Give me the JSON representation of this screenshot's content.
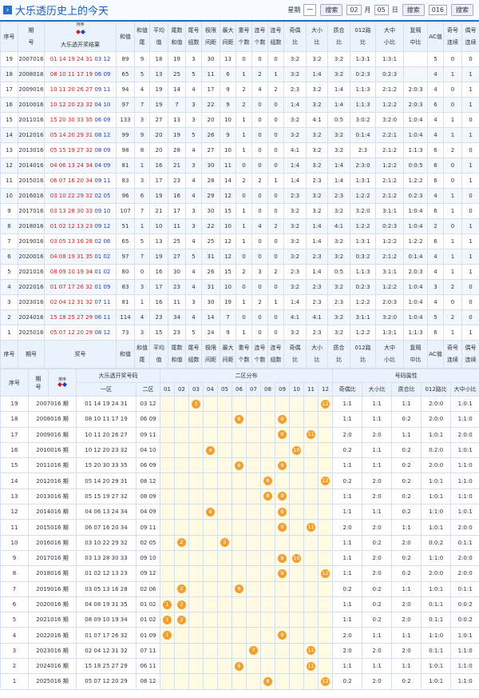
{
  "header": {
    "title": "大乐透历史上的今天",
    "week_label": "星期",
    "week_select": "一",
    "search1": "搜索",
    "month_select": "02",
    "month_label": "月",
    "day_select": "05",
    "day_label": "日",
    "search2": "搜索",
    "year_input": "016",
    "search3": "搜索"
  },
  "upper_table": {
    "sort_label": "排序",
    "columns": [
      [
        "序号"
      ],
      [
        "期",
        "号"
      ],
      [
        "大乐透开奖结果"
      ],
      [
        "和值"
      ],
      [
        "和值",
        "尾"
      ],
      [
        "平均",
        "值"
      ],
      [
        "尾数",
        "和值"
      ],
      [
        "尾号",
        "组数"
      ],
      [
        "极限",
        "间距"
      ],
      [
        "最大",
        "间距"
      ],
      [
        "重号",
        "个数"
      ],
      [
        "连号",
        "个数"
      ],
      [
        "连号",
        "组数"
      ],
      [
        "奇偶",
        "比"
      ],
      [
        "大小",
        "比"
      ],
      [
        "质合",
        "比"
      ],
      [
        "012路",
        "比"
      ],
      [
        "大中",
        "小比"
      ],
      [
        "复隔",
        "中比"
      ],
      [
        "AC值"
      ],
      [
        "奇号",
        "连续"
      ],
      [
        "偶号",
        "连续"
      ]
    ],
    "footer_columns": [
      [
        "序号"
      ],
      [
        "期号"
      ],
      [
        "奖号"
      ],
      [
        "和值"
      ],
      [
        "和值",
        "尾"
      ],
      [
        "平均",
        "值"
      ],
      [
        "尾数",
        "和值"
      ],
      [
        "尾号",
        "组数"
      ],
      [
        "极限",
        "间距"
      ],
      [
        "最大",
        "间距"
      ],
      [
        "重号",
        "个数"
      ],
      [
        "连号",
        "个数"
      ],
      [
        "连号",
        "组数"
      ],
      [
        "奇偶",
        "比"
      ],
      [
        "大小",
        "比"
      ],
      [
        "质合",
        "比"
      ],
      [
        "012路",
        "比"
      ],
      [
        "大中",
        "小比"
      ],
      [
        "复隔",
        "中比"
      ],
      [
        "AC值"
      ],
      [
        "奇号",
        "连续"
      ],
      [
        "偶号",
        "连续"
      ]
    ],
    "rows": [
      {
        "seq": 19,
        "issue": "2007016",
        "front": "01 14 19 24 31",
        "back": "03 12",
        "stats": [
          89,
          9,
          18,
          19,
          3,
          30,
          13,
          0,
          0,
          0,
          "3:2",
          "3:2",
          "3:2",
          "1:3:1",
          "1:3:1",
          null,
          5,
          0,
          0
        ]
      },
      {
        "seq": 18,
        "issue": "2008016",
        "front": "08 10 11 17 19",
        "back": "06 09",
        "stats": [
          65,
          5,
          13,
          25,
          5,
          11,
          6,
          1,
          2,
          1,
          "3:2",
          "1:4",
          "3:2",
          "0:2:3",
          "0:2:3",
          null,
          4,
          1,
          1
        ]
      },
      {
        "seq": 17,
        "issue": "2009016",
        "front": "10 11 20 26 27",
        "back": "09 11",
        "stats": [
          94,
          4,
          19,
          14,
          4,
          17,
          9,
          2,
          4,
          2,
          "2:3",
          "3:2",
          "1:4",
          "1:1:3",
          "2:1:2",
          "2:0:3",
          4,
          0,
          1
        ]
      },
      {
        "seq": 16,
        "issue": "2010016",
        "front": "10 12 20 23 32",
        "back": "04 10",
        "stats": [
          97,
          7,
          19,
          7,
          3,
          22,
          9,
          2,
          0,
          0,
          "1:4",
          "3:2",
          "1:4",
          "1:1:3",
          "1:2:2",
          "2:0:3",
          6,
          0,
          1
        ]
      },
      {
        "seq": 15,
        "issue": "2011016",
        "front": "15 20 30 33 35",
        "back": "06 09",
        "stats": [
          133,
          3,
          27,
          13,
          3,
          20,
          10,
          1,
          0,
          0,
          "3:2",
          "4:1",
          "0:5",
          "3:0:2",
          "3:2:0",
          "1:0:4",
          4,
          1,
          0
        ]
      },
      {
        "seq": 14,
        "issue": "2012016",
        "front": "05 14 20 29 31",
        "back": "08 12",
        "stats": [
          99,
          9,
          20,
          19,
          5,
          26,
          9,
          1,
          0,
          0,
          "3:2",
          "3:2",
          "3:2",
          "0:1:4",
          "2:2:1",
          "1:0:4",
          4,
          1,
          1
        ]
      },
      {
        "seq": 13,
        "issue": "2013016",
        "front": "05 15 19 27 32",
        "back": "08 09",
        "stats": [
          98,
          8,
          20,
          28,
          4,
          27,
          10,
          1,
          0,
          0,
          "4:1",
          "3:2",
          "3:2",
          "2:3",
          "2:1:2",
          "1:1:3",
          6,
          2,
          0
        ]
      },
      {
        "seq": 12,
        "issue": "2014016",
        "front": "04 06 13 24 34",
        "back": "04 09",
        "stats": [
          81,
          1,
          16,
          21,
          3,
          30,
          11,
          0,
          0,
          0,
          "1:4",
          "3:2",
          "1:4",
          "2:3:0",
          "1:2:2",
          "0:0:5",
          6,
          0,
          1
        ]
      },
      {
        "seq": 11,
        "issue": "2015016",
        "front": "06 07 16 20 34",
        "back": "09 11",
        "stats": [
          83,
          3,
          17,
          23,
          4,
          28,
          14,
          2,
          2,
          1,
          "1:4",
          "2:3",
          "1:4",
          "1:3:1",
          "2:1:2",
          "1:2:2",
          6,
          0,
          1
        ]
      },
      {
        "seq": 10,
        "issue": "2016016",
        "front": "03 10 22 29 32",
        "back": "02 05",
        "stats": [
          96,
          6,
          19,
          16,
          4,
          29,
          12,
          0,
          0,
          0,
          "2:3",
          "3:2",
          "2:3",
          "1:2:2",
          "2:1:2",
          "0:2:3",
          4,
          1,
          0
        ]
      },
      {
        "seq": 9,
        "issue": "2017016",
        "front": "03 13 28 30 33",
        "back": "09 10",
        "stats": [
          107,
          7,
          21,
          17,
          3,
          30,
          15,
          1,
          0,
          0,
          "3:2",
          "3:2",
          "3:2",
          "3:2:0",
          "3:1:1",
          "1:0:4",
          6,
          1,
          0
        ]
      },
      {
        "seq": 8,
        "issue": "2018016",
        "front": "01 02 12 13 23",
        "back": "09 12",
        "stats": [
          51,
          1,
          10,
          11,
          3,
          22,
          10,
          1,
          4,
          2,
          "3:2",
          "1:4",
          "4:1",
          "1:2:2",
          "0:2:3",
          "1:0:4",
          2,
          0,
          1
        ]
      },
      {
        "seq": 7,
        "issue": "2019016",
        "front": "03 05 13 16 28",
        "back": "02 06",
        "stats": [
          65,
          5,
          13,
          25,
          4,
          25,
          12,
          1,
          0,
          0,
          "3:2",
          "1:4",
          "3:2",
          "1:3:1",
          "1:2:2",
          "1:2:2",
          6,
          1,
          1
        ]
      },
      {
        "seq": 6,
        "issue": "2020016",
        "front": "04 08 19 31 35",
        "back": "01 02",
        "stats": [
          97,
          7,
          19,
          27,
          5,
          31,
          12,
          0,
          0,
          0,
          "3:2",
          "2:3",
          "3:2",
          "0:3:2",
          "2:1:2",
          "0:1:4",
          4,
          1,
          1
        ]
      },
      {
        "seq": 5,
        "issue": "2021016",
        "front": "08 09 10 19 34",
        "back": "01 02",
        "stats": [
          80,
          0,
          16,
          30,
          4,
          26,
          15,
          2,
          3,
          2,
          "2:3",
          "1:4",
          "0:5",
          "1:1:3",
          "3:1:1",
          "2:0:3",
          4,
          1,
          1
        ]
      },
      {
        "seq": 4,
        "issue": "2022016",
        "front": "01 07 17 26 32",
        "back": "01 09",
        "stats": [
          83,
          3,
          17,
          23,
          4,
          31,
          10,
          0,
          0,
          0,
          "3:2",
          "2:3",
          "3:2",
          "0:2:3",
          "1:2:2",
          "1:0:4",
          3,
          2,
          0
        ]
      },
      {
        "seq": 3,
        "issue": "2023016",
        "front": "02 04 12 31 32",
        "back": "07 11",
        "stats": [
          81,
          1,
          16,
          11,
          3,
          30,
          19,
          1,
          2,
          1,
          "1:4",
          "2:3",
          "2:3",
          "1:2:2",
          "2:0:3",
          "1:0:4",
          4,
          0,
          0
        ]
      },
      {
        "seq": 2,
        "issue": "2024016",
        "front": "15 18 25 27 29",
        "back": "06 11",
        "stats": [
          114,
          4,
          23,
          34,
          4,
          14,
          7,
          0,
          0,
          0,
          "4:1",
          "4:1",
          "3:2",
          "3:1:1",
          "3:2:0",
          "1:0:4",
          5,
          2,
          0
        ]
      },
      {
        "seq": 1,
        "issue": "2025016",
        "front": "05 07 12 20 29",
        "back": "08 12",
        "stats": [
          73,
          3,
          15,
          23,
          5,
          24,
          9,
          1,
          0,
          0,
          "3:2",
          "2:3",
          "3:2",
          "1:2:2",
          "1:3:1",
          "1:1:3",
          6,
          1,
          1
        ]
      }
    ]
  },
  "lower_table": {
    "seq_label": "序号",
    "issue_label": [
      "期",
      "号"
    ],
    "sort_label": "排序",
    "number_group": "大乐透开奖号码",
    "zones": [
      "一区",
      "二区"
    ],
    "dist_title": "二区分布",
    "dist_cols": [
      "01",
      "02",
      "03",
      "04",
      "05",
      "06",
      "07",
      "08",
      "09",
      "10",
      "11",
      "12"
    ],
    "attr_title": "号码属性",
    "attr_cols": [
      "奇偶比",
      "大小比",
      "质合比",
      "012路比",
      "大中小比"
    ],
    "rows": [
      {
        "seq": 19,
        "issue": "2007016 期",
        "front": "01 14 19 24 31",
        "back": "03 12",
        "hits": [
          3,
          12
        ],
        "attrs": [
          "1:1",
          "1:1",
          "1:1",
          "2:0:0",
          "1:0:1"
        ]
      },
      {
        "seq": 18,
        "issue": "2008016 期",
        "front": "08 10 11 17 19",
        "back": "06 09",
        "hits": [
          6,
          9
        ],
        "attrs": [
          "1:1",
          "1:1",
          "0:2",
          "2:0:0",
          "1:1:0"
        ]
      },
      {
        "seq": 17,
        "issue": "2009016 期",
        "front": "10 11 20 26 27",
        "back": "09 11",
        "hits": [
          9,
          11
        ],
        "attrs": [
          "2:0",
          "2:0",
          "1:1",
          "1:0:1",
          "2:0:0"
        ]
      },
      {
        "seq": 16,
        "issue": "2010016 期",
        "front": "10 12 20 23 32",
        "back": "04 10",
        "hits": [
          4,
          10
        ],
        "attrs": [
          "0:2",
          "1:1",
          "0:2",
          "0:2:0",
          "1:0:1"
        ]
      },
      {
        "seq": 15,
        "issue": "2011016 期",
        "front": "15 20 30 33 35",
        "back": "06 09",
        "hits": [
          6,
          9
        ],
        "attrs": [
          "1:1",
          "1:1",
          "0:2",
          "2:0:0",
          "1:1:0"
        ]
      },
      {
        "seq": 14,
        "issue": "2012016 期",
        "front": "05 14 20 29 31",
        "back": "08 12",
        "hits": [
          8,
          12
        ],
        "attrs": [
          "0:2",
          "2:0",
          "0:2",
          "1:0:1",
          "1:1:0"
        ]
      },
      {
        "seq": 13,
        "issue": "2013016 期",
        "front": "05 15 19 27 32",
        "back": "08 09",
        "hits": [
          8,
          9
        ],
        "attrs": [
          "1:1",
          "2:0",
          "0:2",
          "1:0:1",
          "1:1:0"
        ]
      },
      {
        "seq": 12,
        "issue": "2014016 期",
        "front": "04 06 13 24 34",
        "back": "04 09",
        "hits": [
          4,
          9
        ],
        "attrs": [
          "1:1",
          "1:1",
          "0:2",
          "1:1:0",
          "1:0:1"
        ]
      },
      {
        "seq": 11,
        "issue": "2015016 期",
        "front": "06 07 16 20 34",
        "back": "09 11",
        "hits": [
          9,
          11
        ],
        "attrs": [
          "2:0",
          "2:0",
          "1:1",
          "1:0:1",
          "2:0:0"
        ]
      },
      {
        "seq": 10,
        "issue": "2016016 期",
        "front": "03 10 22 29 32",
        "back": "02 05",
        "hits": [
          2,
          5
        ],
        "attrs": [
          "1:1",
          "0:2",
          "2:0",
          "0:0:2",
          "0:1:1"
        ]
      },
      {
        "seq": 9,
        "issue": "2017016 期",
        "front": "03 13 28 30 33",
        "back": "09 10",
        "hits": [
          9,
          10
        ],
        "attrs": [
          "1:1",
          "2:0",
          "0:2",
          "1:1:0",
          "2:0:0"
        ]
      },
      {
        "seq": 8,
        "issue": "2018016 期",
        "front": "01 02 12 13 23",
        "back": "09 12",
        "hits": [
          9,
          12
        ],
        "attrs": [
          "1:1",
          "2:0",
          "0:2",
          "2:0:0",
          "2:0:0"
        ]
      },
      {
        "seq": 7,
        "issue": "2019016 期",
        "front": "03 05 13 16 28",
        "back": "02 06",
        "hits": [
          2,
          6
        ],
        "attrs": [
          "0:2",
          "0:2",
          "1:1",
          "1:0:1",
          "0:1:1"
        ]
      },
      {
        "seq": 6,
        "issue": "2020016 期",
        "front": "04 08 19 31 35",
        "back": "01 02",
        "hits": [
          1,
          2
        ],
        "attrs": [
          "1:1",
          "0:2",
          "2:0",
          "0:1:1",
          "0:0:2"
        ]
      },
      {
        "seq": 5,
        "issue": "2021016 期",
        "front": "08 09 10 19 34",
        "back": "01 02",
        "hits": [
          1,
          2
        ],
        "attrs": [
          "1:1",
          "0:2",
          "2:0",
          "0:1:1",
          "0:0:2"
        ]
      },
      {
        "seq": 4,
        "issue": "2022016 期",
        "front": "01 07 17 26 32",
        "back": "01 09",
        "hits": [
          1,
          9
        ],
        "attrs": [
          "2:0",
          "1:1",
          "1:1",
          "1:1:0",
          "1:0:1"
        ]
      },
      {
        "seq": 3,
        "issue": "2023016 期",
        "front": "02 04 12 31 32",
        "back": "07 11",
        "hits": [
          7,
          11
        ],
        "attrs": [
          "2:0",
          "2:0",
          "2:0",
          "0:1:1",
          "1:1:0"
        ]
      },
      {
        "seq": 2,
        "issue": "2024016 期",
        "front": "15 18 25 27 29",
        "back": "06 11",
        "hits": [
          6,
          11
        ],
        "attrs": [
          "1:1",
          "1:1",
          "1:1",
          "1:0:1",
          "1:1:0"
        ]
      },
      {
        "seq": 1,
        "issue": "2025016 期",
        "front": "05 07 12 20 29",
        "back": "08 12",
        "hits": [
          8,
          12
        ],
        "attrs": [
          "0:2",
          "2:0",
          "0:2",
          "1:0:1",
          "1:1:0"
        ]
      }
    ]
  }
}
